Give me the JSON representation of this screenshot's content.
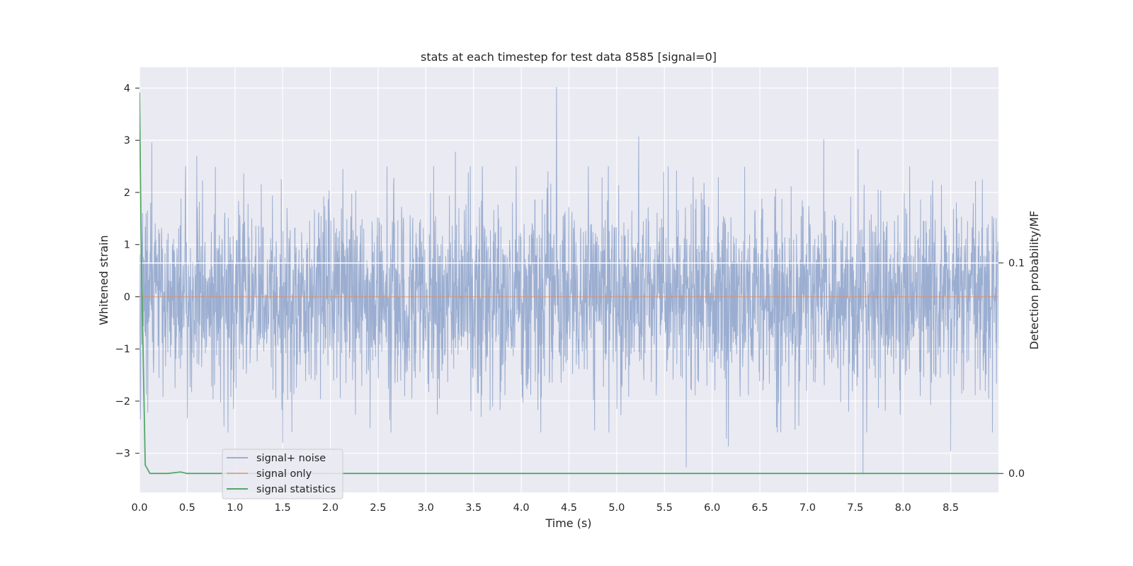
{
  "chart_data": {
    "type": "line",
    "title": "stats at each timestep for test data 8585 [signal=0]",
    "xlabel": "Time (s)",
    "ylabel": "Whitened strain",
    "y2label": "Detection probability/MF",
    "xlim": [
      0.0,
      9.0
    ],
    "ylim": [
      -3.75,
      4.4
    ],
    "y2lim": [
      -0.009,
      0.193
    ],
    "xticks": [
      "0.0",
      "0.5",
      "1.0",
      "1.5",
      "2.0",
      "2.5",
      "3.0",
      "3.5",
      "4.0",
      "4.5",
      "5.0",
      "5.5",
      "6.0",
      "6.5",
      "7.0",
      "7.5",
      "8.0",
      "8.5"
    ],
    "yticks": [
      "4",
      "3",
      "2",
      "1",
      "0",
      "−1",
      "−2",
      "−3"
    ],
    "y2ticks": [
      "0.1",
      "0.0"
    ],
    "grid": true,
    "legend_position": "lower-left",
    "colors": {
      "plot_background": "#eaeaf2",
      "grid": "#ffffff",
      "signal_noise": "#4c72b0",
      "signal_only": "#dd8452",
      "signal_statistics": "#55a868"
    },
    "series": [
      {
        "name": "signal+ noise",
        "axis": "left",
        "description_stats": {
          "mean": 0.0,
          "std": 0.9,
          "max": 4.02,
          "min": -3.4
        },
        "spikes": [
          {
            "x": 4.37,
            "y": 4.02
          },
          {
            "x": 5.23,
            "y": 3.07
          },
          {
            "x": 7.17,
            "y": 3.02
          },
          {
            "x": 0.13,
            "y": 2.96
          },
          {
            "x": 7.53,
            "y": 2.83
          },
          {
            "x": 3.31,
            "y": 2.78
          },
          {
            "x": 0.6,
            "y": 2.7
          },
          {
            "x": 7.58,
            "y": -3.4
          },
          {
            "x": 5.73,
            "y": -3.27
          },
          {
            "x": 8.5,
            "y": -2.96
          },
          {
            "x": 6.17,
            "y": -2.87
          },
          {
            "x": 1.5,
            "y": -2.8
          },
          {
            "x": 6.15,
            "y": -2.72
          }
        ]
      },
      {
        "name": "signal only",
        "axis": "left",
        "x": [
          0.0,
          9.0
        ],
        "y": [
          0.0,
          0.0
        ]
      },
      {
        "name": "signal statistics",
        "axis": "right",
        "x": [
          0.0,
          0.02,
          0.06,
          0.11,
          0.3,
          0.43,
          0.5,
          1.0,
          2.0,
          3.0,
          4.0,
          5.0,
          6.0,
          7.0,
          8.0,
          9.0
        ],
        "y": [
          0.181,
          0.1,
          0.004,
          0.0,
          0.0,
          0.0007,
          0.0,
          0.0,
          0.0,
          0.0,
          0.0,
          0.0,
          0.0,
          0.0,
          0.0,
          0.0
        ]
      }
    ],
    "hline_right": {
      "y": 0.1,
      "color": "#ffffff"
    }
  }
}
